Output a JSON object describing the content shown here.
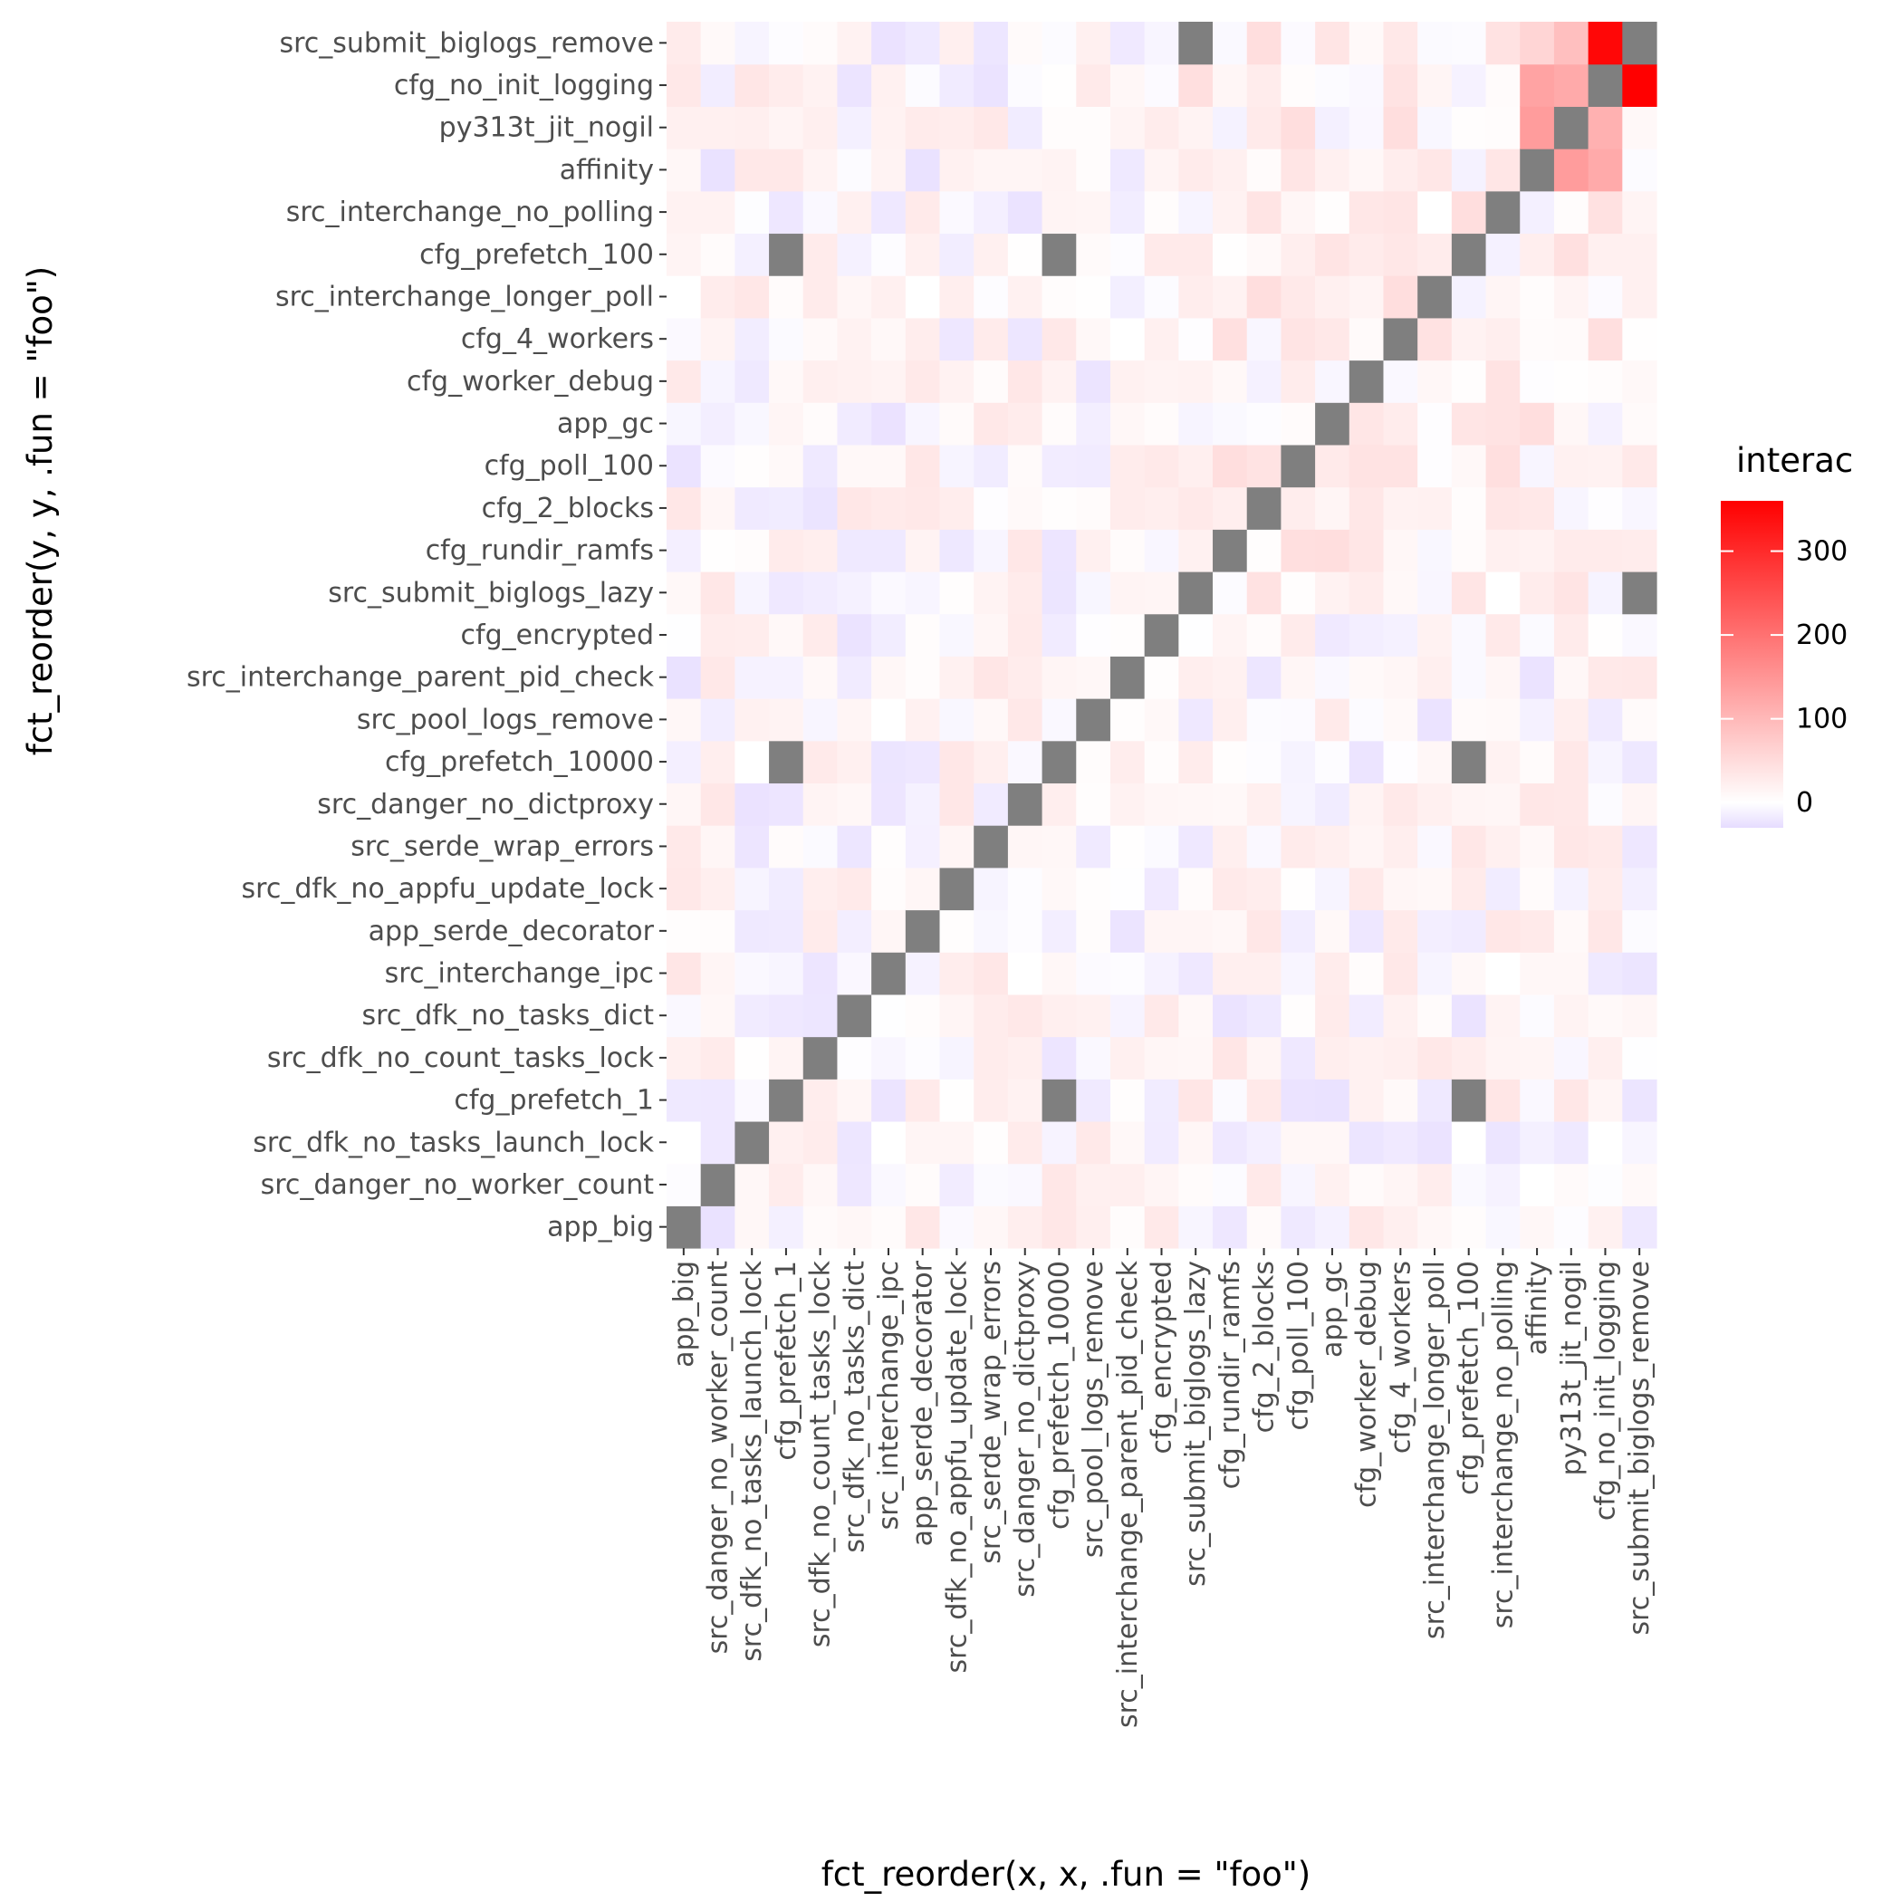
{
  "chart_data": {
    "type": "heatmap",
    "title": "",
    "xlabel": "fct_reorder(x, x, .fun = \"foo\")",
    "ylabel": "fct_reorder(y, y, .fun = \"foo\")",
    "categories": [
      "app_big",
      "src_danger_no_worker_count",
      "src_dfk_no_tasks_launch_lock",
      "cfg_prefetch_1",
      "src_dfk_no_count_tasks_lock",
      "src_dfk_no_tasks_dict",
      "src_interchange_ipc",
      "app_serde_decorator",
      "src_dfk_no_appfu_update_lock",
      "src_serde_wrap_errors",
      "src_danger_no_dictproxy",
      "cfg_prefetch_10000",
      "src_pool_logs_remove",
      "src_interchange_parent_pid_check",
      "cfg_encrypted",
      "src_submit_biglogs_lazy",
      "cfg_rundir_ramfs",
      "cfg_2_blocks",
      "cfg_poll_100",
      "app_gc",
      "cfg_worker_debug",
      "cfg_4_workers",
      "src_interchange_longer_poll",
      "cfg_prefetch_100",
      "src_interchange_no_polling",
      "affinity",
      "py313t_jit_nogil",
      "cfg_no_init_logging",
      "src_submit_biglogs_remove"
    ],
    "legend": {
      "title": "interac",
      "breaks": [
        0,
        100,
        200,
        300
      ],
      "range": [
        -30,
        360
      ],
      "colors": {
        "low": "#e6dcff",
        "mid": "#ffffff",
        "high": "#ff0000",
        "na": "#7f7f7f"
      }
    },
    "na_cells": [
      [
        0,
        0
      ],
      [
        1,
        1
      ],
      [
        2,
        2
      ],
      [
        3,
        3
      ],
      [
        3,
        11
      ],
      [
        3,
        23
      ],
      [
        4,
        4
      ],
      [
        5,
        5
      ],
      [
        6,
        6
      ],
      [
        7,
        7
      ],
      [
        8,
        8
      ],
      [
        9,
        9
      ],
      [
        10,
        10
      ],
      [
        11,
        3
      ],
      [
        11,
        11
      ],
      [
        11,
        23
      ],
      [
        12,
        12
      ],
      [
        13,
        13
      ],
      [
        14,
        14
      ],
      [
        15,
        15
      ],
      [
        15,
        28
      ],
      [
        16,
        16
      ],
      [
        17,
        17
      ],
      [
        18,
        18
      ],
      [
        19,
        19
      ],
      [
        20,
        20
      ],
      [
        21,
        21
      ],
      [
        22,
        22
      ],
      [
        23,
        3
      ],
      [
        23,
        11
      ],
      [
        23,
        23
      ],
      [
        24,
        24
      ],
      [
        25,
        25
      ],
      [
        26,
        26
      ],
      [
        27,
        27
      ],
      [
        28,
        15
      ],
      [
        28,
        28
      ]
    ],
    "notable_values": [
      {
        "x": "src_submit_biglogs_remove",
        "y": "cfg_no_init_logging",
        "value": 360
      },
      {
        "x": "cfg_no_init_logging",
        "y": "src_submit_biglogs_remove",
        "value": 350
      },
      {
        "x": "py313t_jit_nogil",
        "y": "affinity",
        "value": 140
      },
      {
        "x": "affinity",
        "y": "py313t_jit_nogil",
        "value": 140
      },
      {
        "x": "affinity",
        "y": "cfg_no_init_logging",
        "value": 130
      },
      {
        "x": "py313t_jit_nogil",
        "y": "cfg_no_init_logging",
        "value": 120
      },
      {
        "x": "cfg_no_init_logging",
        "y": "affinity",
        "value": 120
      },
      {
        "x": "cfg_no_init_logging",
        "y": "py313t_jit_nogil",
        "value": 110
      },
      {
        "x": "py313t_jit_nogil",
        "y": "src_submit_biglogs_remove",
        "value": 90
      },
      {
        "x": "affinity",
        "y": "src_submit_biglogs_remove",
        "value": 60
      }
    ],
    "other_cells": "values between -30 and 60"
  }
}
